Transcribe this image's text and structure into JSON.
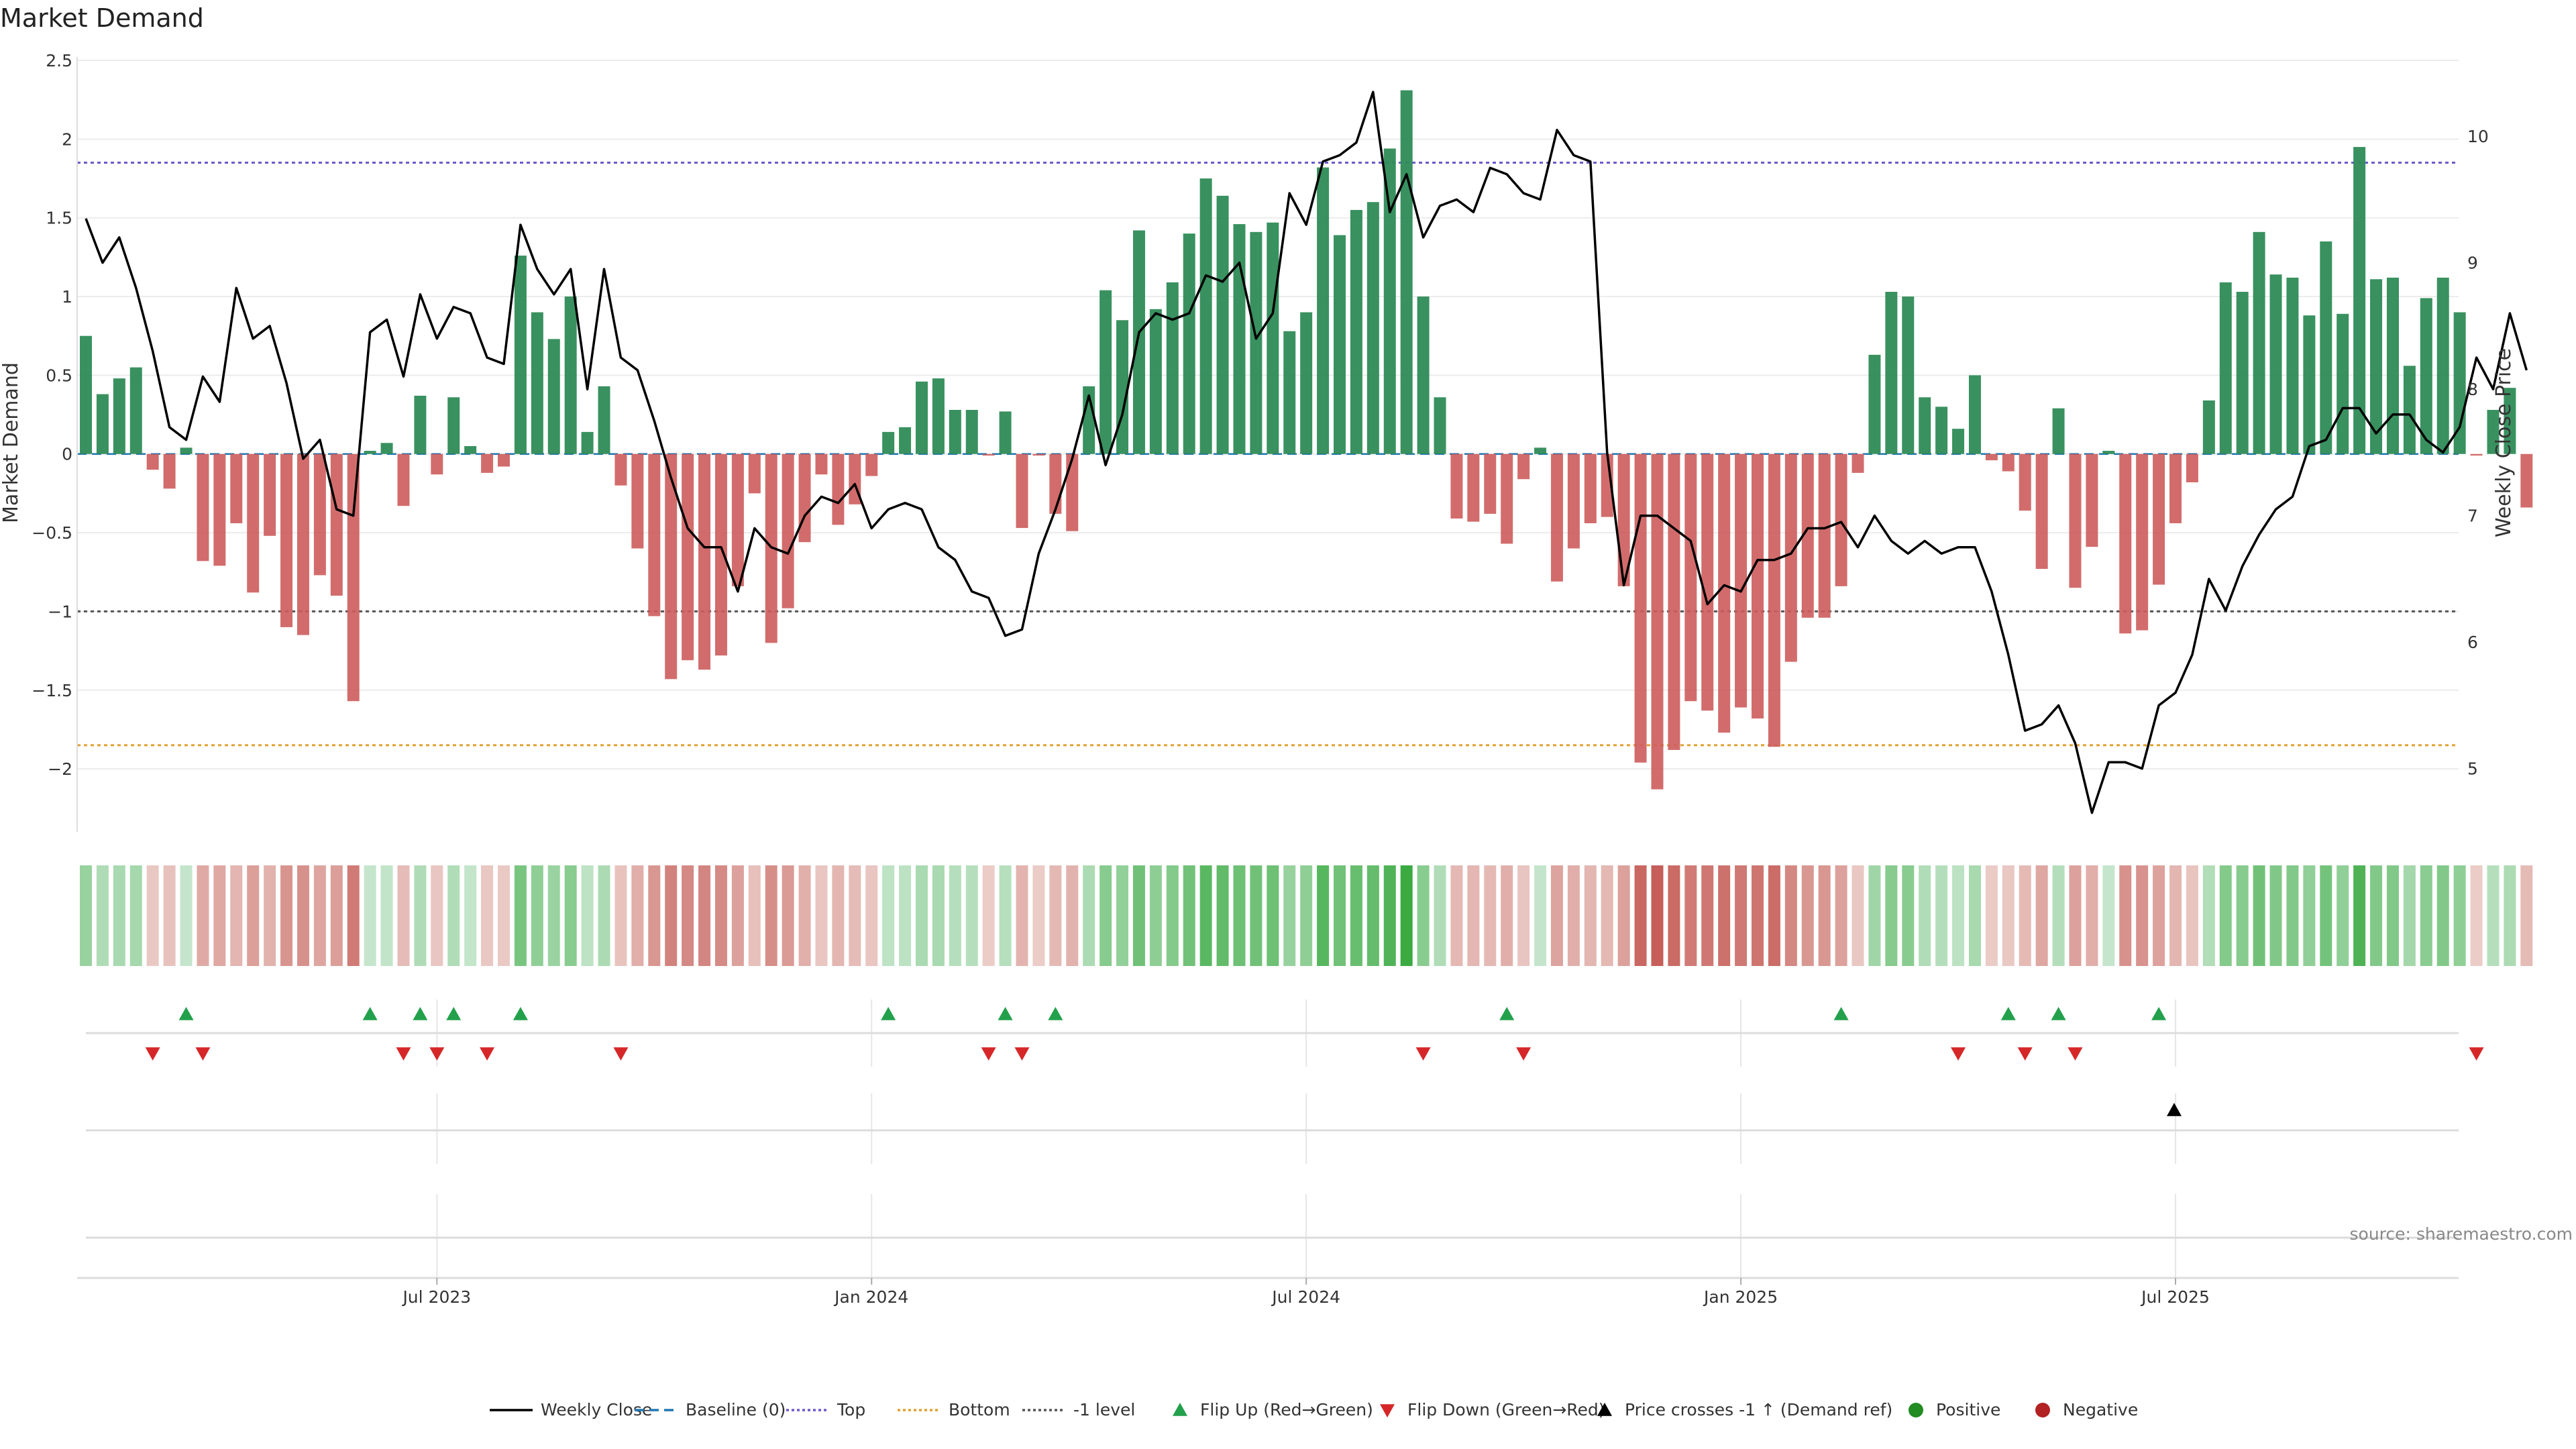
{
  "chart_data": {
    "type": "bar",
    "title": "Market Demand",
    "ylabel_left": "Market Demand",
    "ylabel_right": "Weekly Close Price",
    "source": "source: sharemaestro.com",
    "ylim_left": [
      -2.4,
      2.5
    ],
    "ylim_right": [
      4.5,
      10.6
    ],
    "yticks_left": [
      "2.5",
      "2",
      "1.5",
      "1",
      "0.5",
      "0",
      "−0.5",
      "−1",
      "−1.5",
      "−2"
    ],
    "yticks_right": [
      "10",
      "9",
      "8",
      "7",
      "6",
      "5"
    ],
    "x_ticks": [
      {
        "label": "Jul 2023",
        "week": 21
      },
      {
        "label": "Jan 2024",
        "week": 47
      },
      {
        "label": "Jul 2024",
        "week": 73
      },
      {
        "label": "Jan 2025",
        "week": 99
      },
      {
        "label": "Jul 2025",
        "week": 125
      }
    ],
    "reference_lines": {
      "top": 1.85,
      "bottom": -1.85,
      "minus_one": -1.0,
      "baseline": 0
    },
    "series": [
      {
        "name": "Market Demand",
        "values": [
          0.75,
          0.38,
          0.48,
          0.55,
          -0.1,
          -0.22,
          0.04,
          -0.68,
          -0.71,
          -0.44,
          -0.88,
          -0.52,
          -1.1,
          -1.15,
          -0.77,
          -0.9,
          -1.57,
          0.02,
          0.07,
          -0.33,
          0.37,
          -0.13,
          0.36,
          0.05,
          -0.12,
          -0.08,
          1.26,
          0.9,
          0.73,
          1.0,
          0.14,
          0.43,
          -0.2,
          -0.6,
          -1.03,
          -1.43,
          -1.31,
          -1.37,
          -1.28,
          -0.84,
          -0.25,
          -1.2,
          -0.98,
          -0.56,
          -0.13,
          -0.45,
          -0.32,
          -0.14,
          0.14,
          0.17,
          0.46,
          0.48,
          0.28,
          0.28,
          -0.01,
          0.27,
          -0.47,
          -0.01,
          -0.38,
          -0.49,
          0.43,
          1.04,
          0.85,
          1.42,
          0.92,
          1.09,
          1.4,
          1.75,
          1.64,
          1.46,
          1.41,
          1.47,
          0.78,
          0.9,
          1.82,
          1.39,
          1.55,
          1.6,
          1.94,
          2.31,
          1.0,
          0.36,
          -0.41,
          -0.43,
          -0.38,
          -0.57,
          -0.16,
          0.04,
          -0.81,
          -0.6,
          -0.44,
          -0.4,
          -0.84,
          -1.96,
          -2.13,
          -1.88,
          -1.57,
          -1.63,
          -1.77,
          -1.61,
          -1.68,
          -1.86,
          -1.32,
          -1.04,
          -1.04,
          -0.84,
          -0.12,
          0.63,
          1.03,
          1.0,
          0.36,
          0.3,
          0.16,
          0.5,
          -0.04,
          -0.11,
          -0.36,
          -0.73,
          0.29,
          -0.85,
          -0.59,
          0.02,
          -1.14,
          -1.12,
          -0.83,
          -0.44,
          -0.18,
          0.34,
          1.09,
          1.03,
          1.41,
          1.14,
          1.12,
          0.88,
          1.35,
          0.89,
          1.95,
          1.11,
          1.12,
          0.56,
          0.99,
          1.12,
          0.9,
          -0.01,
          0.28,
          0.42,
          -0.34
        ]
      },
      {
        "name": "Weekly Close",
        "values": [
          9.35,
          9.0,
          9.2,
          8.8,
          8.3,
          7.7,
          7.6,
          8.1,
          7.9,
          8.8,
          8.4,
          8.5,
          8.05,
          7.45,
          7.6,
          7.05,
          7.0,
          8.45,
          8.55,
          8.1,
          8.75,
          8.4,
          8.65,
          8.6,
          8.25,
          8.2,
          9.3,
          8.95,
          8.75,
          8.95,
          8.0,
          8.95,
          8.25,
          8.15,
          7.75,
          7.3,
          6.9,
          6.75,
          6.75,
          6.4,
          6.9,
          6.75,
          6.7,
          7.0,
          7.15,
          7.1,
          7.25,
          6.9,
          7.05,
          7.1,
          7.05,
          6.75,
          6.65,
          6.4,
          6.35,
          6.05,
          6.1,
          6.7,
          7.05,
          7.45,
          7.95,
          7.4,
          7.8,
          8.45,
          8.6,
          8.55,
          8.6,
          8.9,
          8.85,
          9.0,
          8.4,
          8.6,
          9.55,
          9.3,
          9.8,
          9.85,
          9.95,
          10.35,
          9.4,
          9.7,
          9.2,
          9.45,
          9.5,
          9.4,
          9.75,
          9.7,
          9.55,
          9.5,
          10.05,
          9.85,
          9.8,
          7.5,
          6.45,
          7.0,
          7.0,
          6.9,
          6.8,
          6.3,
          6.45,
          6.4,
          6.65,
          6.65,
          6.7,
          6.9,
          6.9,
          6.95,
          6.75,
          7.0,
          6.8,
          6.7,
          6.8,
          6.7,
          6.75,
          6.75,
          6.4,
          5.9,
          5.3,
          5.35,
          5.5,
          5.2,
          4.65,
          5.05,
          5.05,
          5.0,
          5.5,
          5.6,
          5.9,
          6.5,
          6.25,
          6.6,
          6.85,
          7.05,
          7.15,
          7.55,
          7.6,
          7.85,
          7.85,
          7.65,
          7.8,
          7.8,
          7.6,
          7.5,
          7.7,
          8.25,
          8.0,
          8.6,
          8.15
        ]
      }
    ],
    "flip_up_weeks": [
      6,
      17,
      20,
      22,
      26,
      48,
      55,
      58,
      85,
      105,
      115,
      118,
      124
    ],
    "flip_down_weeks": [
      4,
      7,
      19,
      21,
      24,
      32,
      54,
      56,
      80,
      86,
      112,
      116,
      119,
      143
    ],
    "cross_up_weeks": [
      125
    ],
    "colors": {
      "positive": "#2e8b57",
      "negative": "#cd5c5c",
      "close_line": "#000000",
      "top_line": "#6a5acd",
      "bottom_line": "#e0a030",
      "minus_one_line": "#555555",
      "baseline": "#1f77b4",
      "flip_up": "#22a04b",
      "flip_down": "#d62728",
      "cross": "#000000",
      "legend_positive": "#228b22",
      "legend_negative": "#b22222"
    },
    "legend": [
      {
        "label": "Weekly Close",
        "kind": "line",
        "color": "#000000",
        "dash": ""
      },
      {
        "label": "Baseline (0)",
        "kind": "line",
        "color": "#1f77b4",
        "dash": "14,8"
      },
      {
        "label": "Top",
        "kind": "line",
        "color": "#6a5acd",
        "dash": "4,4"
      },
      {
        "label": "Bottom",
        "kind": "line",
        "color": "#e0a030",
        "dash": "4,4"
      },
      {
        "label": "-1 level",
        "kind": "line",
        "color": "#555555",
        "dash": "4,4"
      },
      {
        "label": "Flip Up (Red→Green)",
        "kind": "tri-up",
        "color": "#22a04b"
      },
      {
        "label": "Flip Down (Green→Red)",
        "kind": "tri-down",
        "color": "#d62728"
      },
      {
        "label": "Price crosses -1 ↑ (Demand ref)",
        "kind": "tri-up",
        "color": "#000000"
      },
      {
        "label": "Positive",
        "kind": "dot",
        "color": "#228b22"
      },
      {
        "label": "Negative",
        "kind": "dot",
        "color": "#b22222"
      }
    ]
  }
}
